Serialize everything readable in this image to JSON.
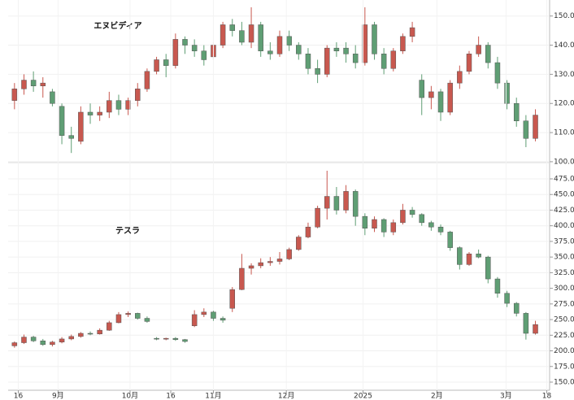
{
  "chart_data": [
    {
      "type": "candlestick",
      "title": "エヌビディア",
      "up_color": "#c8584f",
      "down_color": "#5f9e74",
      "xlim": [
        -0.5,
        56.5
      ],
      "ylim": [
        99.7,
        155.5
      ],
      "grid": true,
      "yticks": [
        {
          "value": 100,
          "label": "100.00"
        },
        {
          "value": 110,
          "label": "110.00"
        },
        {
          "value": 120,
          "label": "120.00"
        },
        {
          "value": 130,
          "label": "130.00"
        },
        {
          "value": 140,
          "label": "140.00"
        },
        {
          "value": 150,
          "label": "150.00"
        }
      ],
      "open": [
        121,
        125,
        128,
        126,
        124,
        119,
        109,
        107,
        117,
        116,
        117,
        121,
        118,
        121,
        125,
        131,
        135,
        133,
        142,
        140,
        138,
        136,
        140,
        147,
        145,
        141,
        147,
        138,
        137,
        143,
        140,
        137,
        132,
        130,
        139,
        139,
        137,
        134,
        147,
        137,
        132,
        138,
        143,
        128,
        122,
        124,
        117,
        127,
        131,
        137,
        140,
        134,
        127,
        120,
        114,
        108
      ],
      "high": [
        127,
        130,
        131,
        129,
        125,
        120,
        112,
        119,
        120,
        119,
        124,
        123,
        122,
        127,
        132,
        136,
        137,
        144,
        143,
        142,
        140,
        141,
        148,
        149,
        148,
        153,
        148,
        141,
        145,
        145,
        141,
        139,
        135,
        140,
        141,
        141,
        140,
        153,
        148,
        139,
        139,
        144,
        148,
        130,
        126,
        125,
        128,
        133,
        138,
        143,
        141,
        136,
        128,
        122,
        116,
        118
      ],
      "low": [
        118,
        123,
        124,
        122,
        119,
        106,
        103,
        106,
        113,
        114,
        115,
        116,
        116,
        119,
        124,
        130,
        129,
        132,
        137,
        136,
        133,
        135,
        139,
        143,
        140,
        139,
        136,
        135,
        136,
        138,
        135,
        130,
        127,
        129,
        136,
        134,
        132,
        133,
        135,
        130,
        131,
        137,
        141,
        116,
        118,
        114,
        116,
        125,
        130,
        136,
        132,
        125,
        118,
        112,
        105,
        107
      ],
      "close": [
        125,
        128,
        126,
        127,
        120,
        109,
        108,
        117,
        116,
        117,
        121,
        118,
        121,
        125,
        131,
        135,
        133,
        142,
        140,
        138,
        135,
        140,
        147,
        145,
        141,
        147,
        138,
        137,
        143,
        140,
        137,
        132,
        130,
        139,
        138,
        137,
        134,
        147,
        137,
        132,
        138,
        143,
        146,
        122,
        124,
        117,
        127,
        131,
        137,
        140,
        134,
        127,
        120,
        114,
        108,
        116
      ]
    },
    {
      "type": "candlestick",
      "title": "テスラ",
      "up_color": "#c8584f",
      "down_color": "#5f9e74",
      "xlim": [
        -0.5,
        56.5
      ],
      "ylim": [
        137,
        501
      ],
      "grid": true,
      "yticks": [
        {
          "value": 150,
          "label": "150.00"
        },
        {
          "value": 175,
          "label": "175.00"
        },
        {
          "value": 200,
          "label": "200.00"
        },
        {
          "value": 225,
          "label": "225.00"
        },
        {
          "value": 250,
          "label": "250.00"
        },
        {
          "value": 275,
          "label": "275.00"
        },
        {
          "value": 300,
          "label": "300.00"
        },
        {
          "value": 325,
          "label": "325.00"
        },
        {
          "value": 350,
          "label": "350.00"
        },
        {
          "value": 375,
          "label": "375.00"
        },
        {
          "value": 400,
          "label": "400.00"
        },
        {
          "value": 425,
          "label": "425.00"
        },
        {
          "value": 450,
          "label": "450.00"
        },
        {
          "value": 475,
          "label": "475.00"
        }
      ],
      "xticks": [
        {
          "value": 0.4,
          "label": "16"
        },
        {
          "value": 4.6,
          "label": "9月"
        },
        {
          "value": 12.2,
          "label": "10月"
        },
        {
          "value": 16.5,
          "label": "16"
        },
        {
          "value": 21,
          "label": "11月"
        },
        {
          "value": 28.7,
          "label": "12月"
        },
        {
          "value": 36.8,
          "label": "2025"
        },
        {
          "value": 44.6,
          "label": "2月"
        },
        {
          "value": 51.9,
          "label": "3月"
        },
        {
          "value": 56.2,
          "label": "18"
        }
      ],
      "open": [
        208,
        213,
        222,
        216,
        210,
        214,
        219,
        223,
        228,
        227,
        233,
        245,
        258,
        260,
        252,
        220,
        219,
        220,
        218,
        240,
        258,
        262,
        252,
        268,
        298,
        332,
        336,
        341,
        343,
        347,
        362,
        382,
        398,
        428,
        447,
        425,
        455,
        415,
        396,
        410,
        390,
        405,
        425,
        418,
        405,
        398,
        390,
        365,
        338,
        355,
        350,
        315,
        292,
        276,
        260,
        228
      ],
      "high": [
        215,
        226,
        224,
        219,
        216,
        222,
        226,
        230,
        231,
        236,
        248,
        262,
        263,
        261,
        255,
        222,
        221,
        222,
        219,
        265,
        268,
        264,
        255,
        302,
        355,
        340,
        348,
        350,
        358,
        365,
        385,
        405,
        432,
        488,
        462,
        465,
        458,
        420,
        415,
        412,
        410,
        435,
        430,
        420,
        408,
        402,
        392,
        367,
        358,
        362,
        352,
        318,
        296,
        278,
        262,
        248
      ],
      "low": [
        205,
        211,
        214,
        208,
        207,
        212,
        217,
        221,
        225,
        226,
        232,
        244,
        254,
        250,
        245,
        217,
        217,
        216,
        213,
        238,
        254,
        248,
        245,
        262,
        297,
        322,
        332,
        336,
        338,
        345,
        360,
        380,
        396,
        410,
        418,
        420,
        400,
        385,
        390,
        382,
        385,
        402,
        413,
        400,
        392,
        385,
        360,
        330,
        336,
        348,
        308,
        285,
        270,
        255,
        218,
        226
      ],
      "close": [
        213,
        222,
        216,
        210,
        214,
        219,
        223,
        228,
        227,
        233,
        245,
        258,
        260,
        252,
        247,
        219,
        220,
        218,
        215,
        258,
        262,
        252,
        249,
        298,
        332,
        336,
        341,
        343,
        347,
        362,
        382,
        398,
        428,
        447,
        425,
        455,
        415,
        396,
        410,
        390,
        405,
        425,
        418,
        405,
        398,
        390,
        365,
        338,
        355,
        350,
        315,
        292,
        276,
        260,
        228,
        242
      ]
    }
  ]
}
